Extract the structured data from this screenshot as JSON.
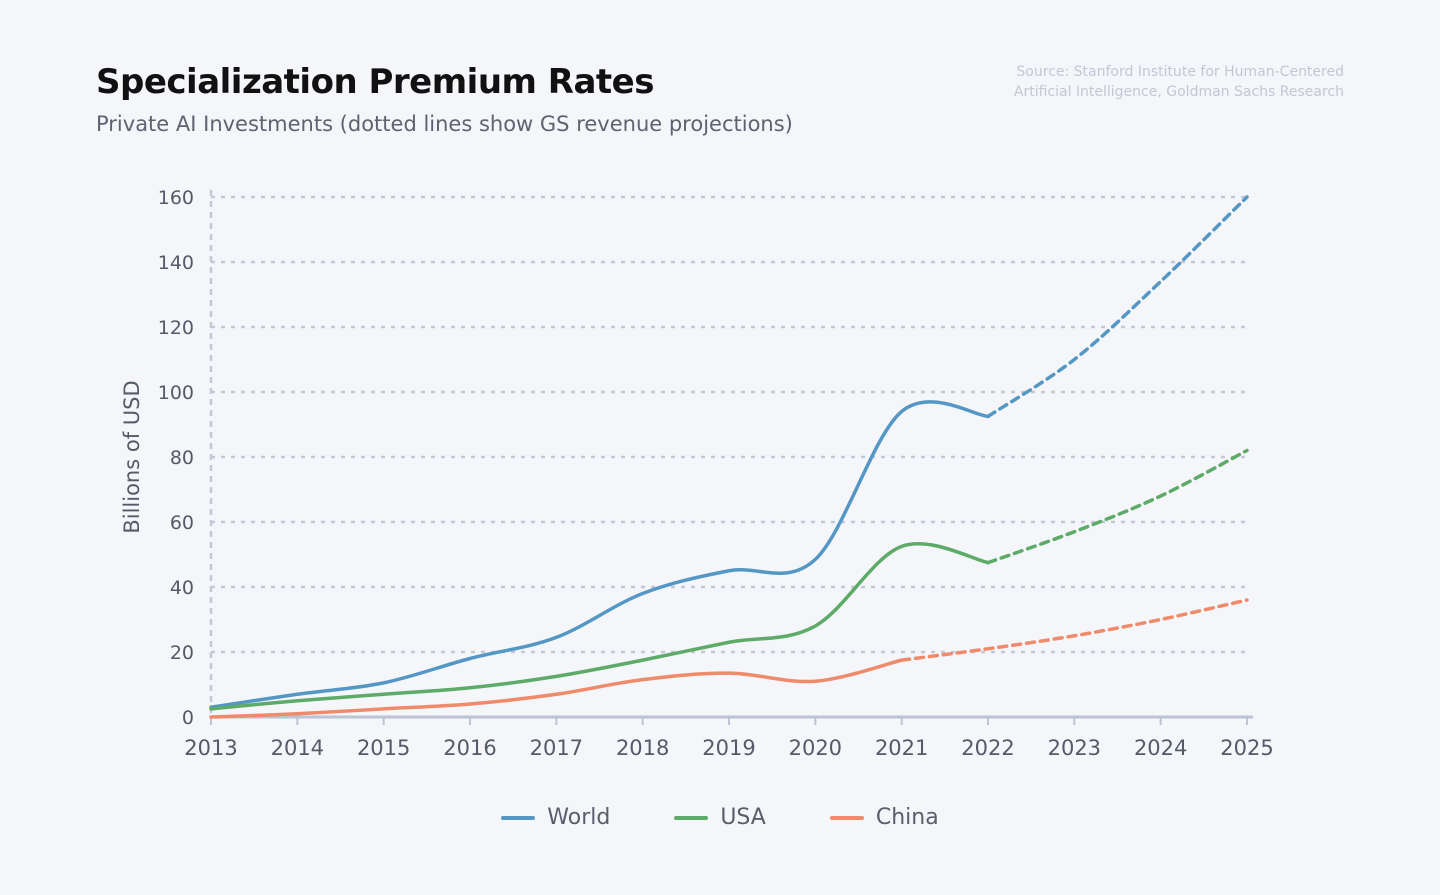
{
  "title": "Specialization Premium Rates",
  "subtitle": "Private AI Investments (dotted lines show GS revenue projections)",
  "source_lines": [
    "Source: Stanford Institute for Human-Centered",
    "Artificial Intelligence, Goldman Sachs Research"
  ],
  "chart_data": {
    "type": "line",
    "title": "Specialization Premium Rates",
    "ylabel": "Billions of USD",
    "xlabel": "",
    "x": [
      2013,
      2014,
      2015,
      2016,
      2017,
      2018,
      2019,
      2020,
      2021,
      2022,
      2023,
      2024,
      2025
    ],
    "x_tick_labels": [
      "2013",
      "2014",
      "2015",
      "2016",
      "2017",
      "2018",
      "2019",
      "2020",
      "2021",
      "2022",
      "2023",
      "2024",
      "2025"
    ],
    "y_ticks": [
      0,
      20,
      40,
      60,
      80,
      100,
      120,
      140,
      160
    ],
    "ylim": [
      0,
      160
    ],
    "grid": "horizontal dotted",
    "legend": "bottom-center",
    "projection_start": {
      "World": 2022,
      "USA": 2022,
      "China": 2021
    },
    "series": [
      {
        "name": "World",
        "color": "#5497c5",
        "values": [
          3,
          7,
          10.5,
          18,
          24.5,
          38,
          45,
          48.5,
          94,
          92.5,
          110,
          134,
          160
        ]
      },
      {
        "name": "USA",
        "color": "#5eaa68",
        "values": [
          2.5,
          5,
          7,
          9,
          12.5,
          17.5,
          23,
          28,
          52.5,
          47.5,
          57,
          68,
          82
        ]
      },
      {
        "name": "China",
        "color": "#ef8a6b",
        "values": [
          0,
          1,
          2.5,
          4,
          7,
          11.5,
          13.5,
          11,
          17.5,
          21,
          25,
          30,
          36
        ]
      }
    ]
  }
}
